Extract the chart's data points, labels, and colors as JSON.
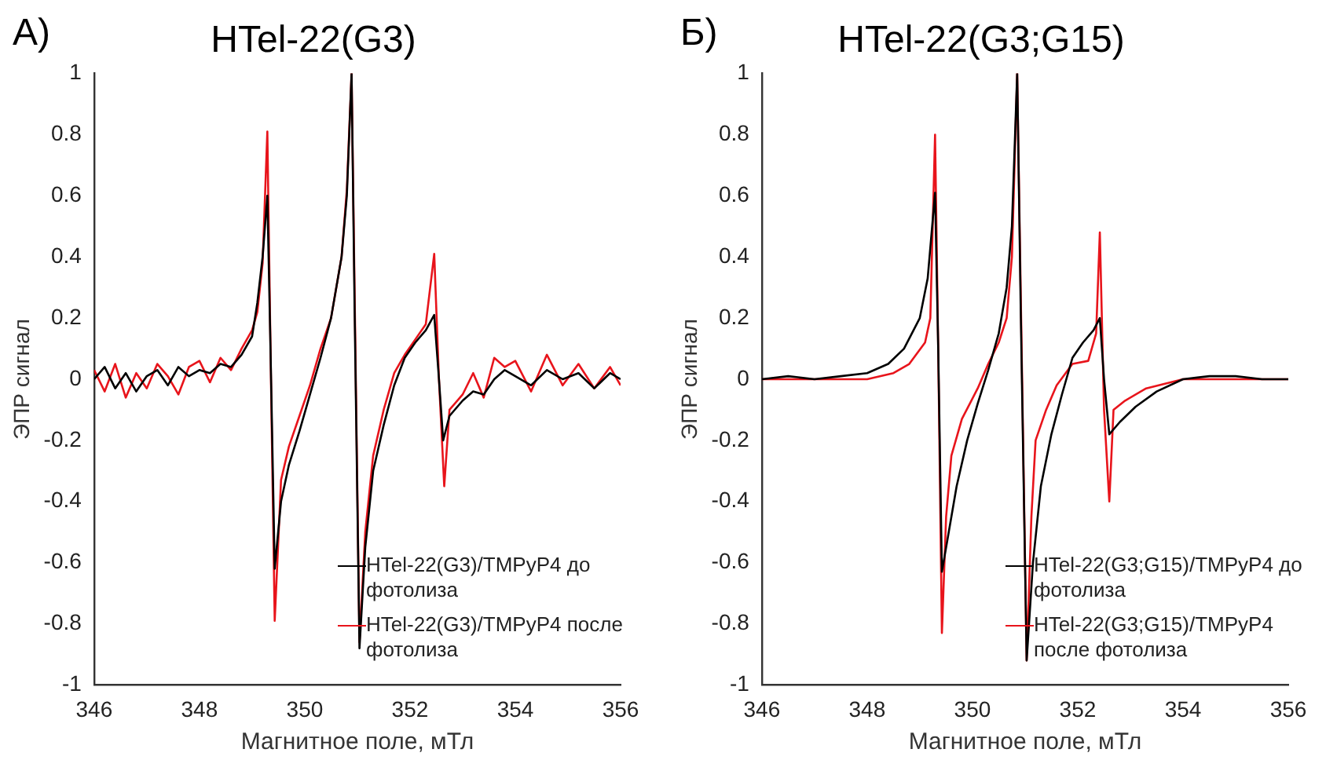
{
  "chart_data": [
    {
      "type": "line",
      "title": "HTel-22(G3)",
      "annotations": [
        "А)"
      ],
      "xlabel": "Магнитное поле, мТл",
      "ylabel": "ЭПР сигнал",
      "xlim": [
        346,
        356
      ],
      "xticks": [
        346,
        348,
        350,
        352,
        354,
        356
      ],
      "ylim": [
        -1,
        1
      ],
      "yticks": [
        -1,
        -0.8,
        -0.6,
        -0.4,
        -0.2,
        0,
        0.2,
        0.4,
        0.6,
        0.8,
        1
      ],
      "grid": false,
      "legend": "bottom right",
      "marker": "none",
      "line_style": "solid",
      "series": [
        {
          "name": "HTel-22(G3)/TMPyP4 до фотолиза",
          "color": "#000000",
          "x": [
            346,
            346.2,
            346.4,
            346.6,
            346.8,
            347,
            347.2,
            347.4,
            347.6,
            347.8,
            348,
            348.2,
            348.4,
            348.6,
            348.8,
            349,
            349.1,
            349.2,
            349.29,
            349.35,
            349.43,
            349.55,
            349.7,
            349.9,
            350.1,
            350.3,
            350.5,
            350.7,
            350.8,
            350.89,
            350.95,
            351.04,
            351.15,
            351.3,
            351.5,
            351.7,
            351.9,
            352.1,
            352.3,
            352.46,
            352.55,
            352.63,
            352.75,
            353,
            353.2,
            353.4,
            353.6,
            353.8,
            354,
            354.3,
            354.6,
            354.9,
            355.2,
            355.5,
            355.8,
            356
          ],
          "values": [
            0,
            0.04,
            -0.03,
            0.02,
            -0.04,
            0.01,
            0.03,
            -0.02,
            0.04,
            0.01,
            0.03,
            0.02,
            0.05,
            0.04,
            0.08,
            0.14,
            0.25,
            0.4,
            0.6,
            0.1,
            -0.62,
            -0.4,
            -0.28,
            -0.17,
            -0.05,
            0.07,
            0.2,
            0.4,
            0.6,
            1,
            0.2,
            -0.88,
            -0.55,
            -0.3,
            -0.15,
            -0.02,
            0.07,
            0.12,
            0.16,
            0.21,
            0,
            -0.2,
            -0.12,
            -0.07,
            -0.04,
            -0.05,
            0,
            0.03,
            0.01,
            -0.02,
            0.03,
            0,
            0.02,
            -0.03,
            0.02,
            0
          ]
        },
        {
          "name": "HTel-22(G3)/TMPyP4 после фотолиза",
          "color": "#e8141b",
          "x": [
            346,
            346.2,
            346.4,
            346.6,
            346.8,
            347,
            347.2,
            347.4,
            347.6,
            347.8,
            348,
            348.2,
            348.4,
            348.6,
            348.8,
            349,
            349.1,
            349.2,
            349.29,
            349.35,
            349.43,
            349.55,
            349.7,
            349.9,
            350.1,
            350.3,
            350.5,
            350.7,
            350.8,
            350.89,
            351.04,
            351.15,
            351.3,
            351.5,
            351.7,
            351.9,
            352.1,
            352.3,
            352.46,
            352.55,
            352.65,
            352.75,
            353,
            353.2,
            353.4,
            353.6,
            353.8,
            354,
            354.3,
            354.6,
            354.9,
            355.2,
            355.5,
            355.8,
            356
          ],
          "values": [
            0.03,
            -0.04,
            0.05,
            -0.06,
            0.02,
            -0.03,
            0.05,
            0.01,
            -0.05,
            0.04,
            0.06,
            -0.01,
            0.07,
            0.03,
            0.1,
            0.16,
            0.22,
            0.38,
            0.81,
            0.1,
            -0.79,
            -0.33,
            -0.22,
            -0.12,
            -0.02,
            0.1,
            0.2,
            0.4,
            0.62,
            1,
            -0.86,
            -0.5,
            -0.25,
            -0.1,
            0.02,
            0.08,
            0.13,
            0.18,
            0.41,
            0,
            -0.35,
            -0.1,
            -0.05,
            0.02,
            -0.06,
            0.07,
            0.04,
            0.06,
            -0.04,
            0.08,
            -0.02,
            0.05,
            -0.03,
            0.04,
            -0.02
          ]
        }
      ]
    },
    {
      "type": "line",
      "title": "HTel-22(G3;G15)",
      "annotations": [
        "Б)"
      ],
      "xlabel": "Магнитное поле, мТл",
      "ylabel": "ЭПР сигнал",
      "xlim": [
        346,
        356
      ],
      "xticks": [
        346,
        348,
        350,
        352,
        354,
        356
      ],
      "ylim": [
        -1,
        1
      ],
      "yticks": [
        -1,
        -0.8,
        -0.6,
        -0.4,
        -0.2,
        0,
        0.2,
        0.4,
        0.6,
        0.8,
        1
      ],
      "grid": false,
      "legend": "bottom right",
      "marker": "none",
      "line_style": "solid",
      "series": [
        {
          "name": "HTel-22(G3;G15)/TMPyP4 до фотолиза",
          "color": "#000000",
          "x": [
            346,
            346.5,
            347,
            347.5,
            348,
            348.4,
            348.7,
            349,
            349.15,
            349.29,
            349.35,
            349.42,
            349.55,
            349.7,
            349.9,
            350.1,
            350.3,
            350.5,
            350.65,
            350.75,
            350.85,
            350.92,
            351.03,
            351.15,
            351.3,
            351.5,
            351.7,
            351.9,
            352.1,
            352.3,
            352.42,
            352.5,
            352.6,
            352.8,
            353.1,
            353.5,
            354,
            354.5,
            355,
            355.5,
            356
          ],
          "values": [
            0,
            0.01,
            0,
            0.01,
            0.02,
            0.05,
            0.1,
            0.2,
            0.33,
            0.61,
            0.1,
            -0.63,
            -0.5,
            -0.35,
            -0.2,
            -0.08,
            0.03,
            0.15,
            0.3,
            0.5,
            1,
            0.2,
            -0.92,
            -0.6,
            -0.35,
            -0.18,
            -0.05,
            0.07,
            0.12,
            0.16,
            0.2,
            0,
            -0.18,
            -0.14,
            -0.09,
            -0.04,
            0,
            0.01,
            0.01,
            0,
            0
          ]
        },
        {
          "name": "HTel-22(G3;G15)/TMPyP4 после фотолиза",
          "color": "#e8141b",
          "x": [
            346,
            347,
            348,
            348.5,
            348.8,
            349.1,
            349.2,
            349.29,
            349.35,
            349.42,
            349.5,
            349.6,
            349.8,
            350.1,
            350.3,
            350.5,
            350.65,
            350.75,
            350.85,
            351.03,
            351.12,
            351.2,
            351.4,
            351.6,
            351.9,
            352.2,
            352.35,
            352.42,
            352.5,
            352.6,
            352.68,
            352.9,
            353.3,
            354,
            355,
            356
          ],
          "values": [
            0,
            0,
            0,
            0.02,
            0.05,
            0.12,
            0.2,
            0.8,
            0.1,
            -0.83,
            -0.45,
            -0.25,
            -0.13,
            -0.03,
            0.05,
            0.12,
            0.2,
            0.4,
            1,
            -0.92,
            -0.45,
            -0.2,
            -0.1,
            -0.02,
            0.05,
            0.06,
            0.15,
            0.48,
            -0.1,
            -0.4,
            -0.1,
            -0.07,
            -0.03,
            0,
            0,
            0
          ]
        }
      ]
    }
  ]
}
